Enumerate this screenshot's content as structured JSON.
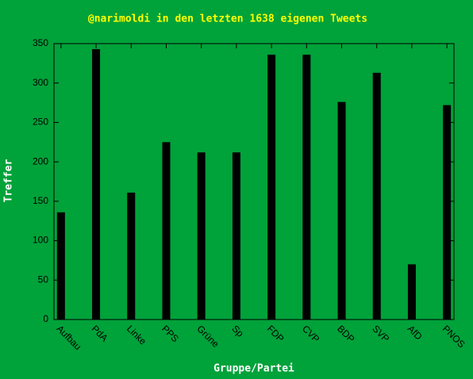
{
  "chart_data": {
    "type": "bar",
    "title": "@narimoldi in den letzten 1638 eigenen Tweets",
    "x_label": "Gruppe/Partei",
    "y_label": "Treffer",
    "categories": [
      "Aufbau",
      "PdA",
      "Linke",
      "PPS",
      "Grüne",
      "Sp",
      "FDP",
      "CVP",
      "BDP",
      "SVP",
      "AfD",
      "PNOS"
    ],
    "values": [
      136,
      343,
      161,
      225,
      212,
      212,
      336,
      336,
      276,
      313,
      70,
      272
    ],
    "color": "#000000",
    "ylim": [
      0,
      350
    ],
    "yticks": [
      0,
      50,
      100,
      150,
      200,
      250,
      300,
      350
    ],
    "grid": false
  }
}
